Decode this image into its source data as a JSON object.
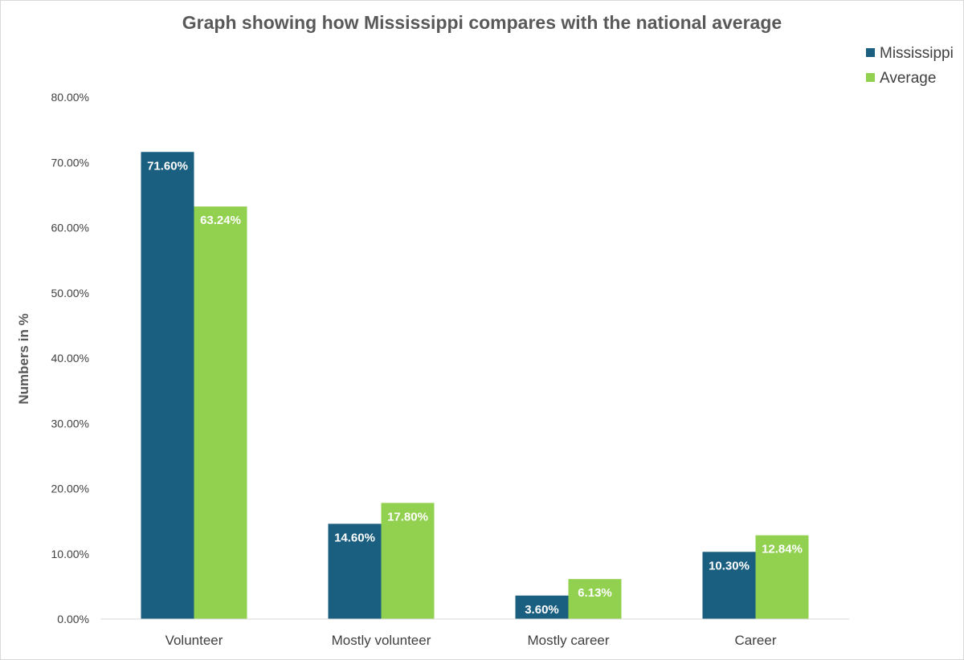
{
  "chart_data": {
    "type": "bar",
    "title": "Graph showing how Mississippi compares with the national average",
    "xlabel": "",
    "ylabel": "Numbers in %",
    "categories": [
      "Volunteer",
      "Mostly volunteer",
      "Mostly career",
      "Career"
    ],
    "series": [
      {
        "name": "Mississippi",
        "color": "#1a5e80",
        "values": [
          71.6,
          14.6,
          3.6,
          10.3
        ],
        "labels": [
          "71.60%",
          "14.60%",
          "3.60%",
          "10.30%"
        ]
      },
      {
        "name": "Average",
        "color": "#92d050",
        "values": [
          63.24,
          17.8,
          6.13,
          12.84
        ],
        "labels": [
          "63.24%",
          "17.80%",
          "6.13%",
          "12.84%"
        ]
      }
    ],
    "ylim": [
      0,
      80
    ],
    "yticks": [
      0,
      10,
      20,
      30,
      40,
      50,
      60,
      70,
      80
    ],
    "ytick_labels": [
      "0.00%",
      "10.00%",
      "20.00%",
      "30.00%",
      "40.00%",
      "50.00%",
      "60.00%",
      "70.00%",
      "80.00%"
    ],
    "grid": false,
    "legend_position": "top-right"
  }
}
